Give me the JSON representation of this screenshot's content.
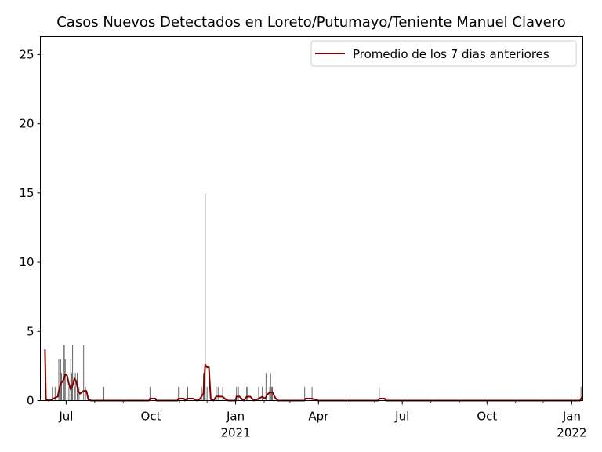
{
  "chart_data": {
    "type": "bar",
    "title": "Casos Nuevos Detectados en Loreto/Putumayo/Teniente Manuel Clavero",
    "xlabel": "",
    "ylabel": "",
    "xlim": [
      "2020-06-03",
      "2022-01-13"
    ],
    "ylim": [
      0,
      26.3
    ],
    "yticks": [
      0,
      5,
      10,
      15,
      20,
      25
    ],
    "xticks": [
      {
        "date": "2020-07-01",
        "label": "Jul",
        "sublabel": ""
      },
      {
        "date": "2020-10-01",
        "label": "Oct",
        "sublabel": ""
      },
      {
        "date": "2021-01-01",
        "label": "Jan",
        "sublabel": "2021"
      },
      {
        "date": "2021-04-01",
        "label": "Apr",
        "sublabel": ""
      },
      {
        "date": "2021-07-01",
        "label": "Jul",
        "sublabel": ""
      },
      {
        "date": "2021-10-01",
        "label": "Oct",
        "sublabel": ""
      },
      {
        "date": "2022-01-01",
        "label": "Jan",
        "sublabel": "2022"
      }
    ],
    "legend": {
      "position": "top-right"
    },
    "bar_color": "#555555",
    "line_color": "#800000",
    "series": [
      {
        "kind": "bar",
        "points": [
          [
            "2020-06-03",
            1
          ],
          [
            "2020-06-16",
            1
          ],
          [
            "2020-06-19",
            1
          ],
          [
            "2020-06-23",
            3
          ],
          [
            "2020-06-24",
            1
          ],
          [
            "2020-06-25",
            3
          ],
          [
            "2020-06-26",
            2
          ],
          [
            "2020-06-28",
            4
          ],
          [
            "2020-06-29",
            4
          ],
          [
            "2020-06-30",
            3
          ],
          [
            "2020-07-02",
            2
          ],
          [
            "2020-07-04",
            1
          ],
          [
            "2020-07-06",
            3
          ],
          [
            "2020-07-07",
            2
          ],
          [
            "2020-07-08",
            4
          ],
          [
            "2020-07-10",
            1
          ],
          [
            "2020-07-11",
            2
          ],
          [
            "2020-07-13",
            2
          ],
          [
            "2020-07-15",
            1
          ],
          [
            "2020-07-20",
            4
          ],
          [
            "2020-07-22",
            1
          ],
          [
            "2020-08-10",
            1
          ],
          [
            "2020-08-11",
            1
          ],
          [
            "2020-09-30",
            1
          ],
          [
            "2020-10-31",
            1
          ],
          [
            "2020-11-10",
            1
          ],
          [
            "2020-11-25",
            1
          ],
          [
            "2020-11-27",
            2
          ],
          [
            "2020-11-28",
            2
          ],
          [
            "2020-11-29",
            15
          ],
          [
            "2020-12-01",
            1
          ],
          [
            "2020-12-11",
            1
          ],
          [
            "2020-12-13",
            1
          ],
          [
            "2020-12-18",
            1
          ],
          [
            "2021-01-02",
            1
          ],
          [
            "2021-01-04",
            1
          ],
          [
            "2021-01-13",
            1
          ],
          [
            "2021-01-14",
            1
          ],
          [
            "2021-01-26",
            1
          ],
          [
            "2021-01-30",
            1
          ],
          [
            "2021-02-03",
            2
          ],
          [
            "2021-02-07",
            1
          ],
          [
            "2021-02-08",
            2
          ],
          [
            "2021-02-09",
            1
          ],
          [
            "2021-02-10",
            1
          ],
          [
            "2021-03-17",
            1
          ],
          [
            "2021-03-25",
            1
          ],
          [
            "2021-06-06",
            1
          ],
          [
            "2022-01-11",
            1
          ]
        ]
      },
      {
        "kind": "line",
        "name": "Promedio de los 7 dias anteriores",
        "points": [
          [
            "2020-06-08",
            3.7
          ],
          [
            "2020-06-09",
            0.1
          ],
          [
            "2020-06-12",
            0
          ],
          [
            "2020-06-16",
            0.1
          ],
          [
            "2020-06-19",
            0.2
          ],
          [
            "2020-06-22",
            0.3
          ],
          [
            "2020-06-23",
            0.7
          ],
          [
            "2020-06-25",
            1.2
          ],
          [
            "2020-06-27",
            1.4
          ],
          [
            "2020-06-29",
            1.6
          ],
          [
            "2020-06-30",
            1.9
          ],
          [
            "2020-07-02",
            1.8
          ],
          [
            "2020-07-04",
            1.2
          ],
          [
            "2020-07-06",
            0.8
          ],
          [
            "2020-07-08",
            1.1
          ],
          [
            "2020-07-10",
            1.6
          ],
          [
            "2020-07-12",
            1.4
          ],
          [
            "2020-07-14",
            0.7
          ],
          [
            "2020-07-16",
            0.5
          ],
          [
            "2020-07-18",
            0.6
          ],
          [
            "2020-07-20",
            0.7
          ],
          [
            "2020-07-23",
            0.7
          ],
          [
            "2020-07-25",
            0.1
          ],
          [
            "2020-07-28",
            0
          ],
          [
            "2020-09-29",
            0
          ],
          [
            "2020-09-30",
            0.14
          ],
          [
            "2020-10-06",
            0.14
          ],
          [
            "2020-10-07",
            0
          ],
          [
            "2020-10-30",
            0
          ],
          [
            "2020-10-31",
            0.14
          ],
          [
            "2020-11-06",
            0.14
          ],
          [
            "2020-11-07",
            0
          ],
          [
            "2020-11-09",
            0.14
          ],
          [
            "2020-11-16",
            0.14
          ],
          [
            "2020-11-20",
            0
          ],
          [
            "2020-11-23",
            0.1
          ],
          [
            "2020-11-25",
            0.3
          ],
          [
            "2020-11-27",
            0.5
          ],
          [
            "2020-11-29",
            2.6
          ],
          [
            "2020-12-01",
            2.4
          ],
          [
            "2020-12-03",
            2.4
          ],
          [
            "2020-12-05",
            0.1
          ],
          [
            "2020-12-08",
            0
          ],
          [
            "2020-12-11",
            0.3
          ],
          [
            "2020-12-14",
            0.3
          ],
          [
            "2020-12-18",
            0.28
          ],
          [
            "2020-12-21",
            0.1
          ],
          [
            "2020-12-24",
            0
          ],
          [
            "2021-01-01",
            0
          ],
          [
            "2021-01-02",
            0.3
          ],
          [
            "2021-01-05",
            0.3
          ],
          [
            "2021-01-08",
            0.1
          ],
          [
            "2021-01-10",
            0
          ],
          [
            "2021-01-13",
            0.28
          ],
          [
            "2021-01-17",
            0.28
          ],
          [
            "2021-01-21",
            0
          ],
          [
            "2021-01-26",
            0.14
          ],
          [
            "2021-01-30",
            0.28
          ],
          [
            "2021-02-02",
            0.14
          ],
          [
            "2021-02-04",
            0.4
          ],
          [
            "2021-02-07",
            0.6
          ],
          [
            "2021-02-10",
            0.6
          ],
          [
            "2021-02-13",
            0.2
          ],
          [
            "2021-02-16",
            0
          ],
          [
            "2021-03-17",
            0
          ],
          [
            "2021-03-18",
            0.14
          ],
          [
            "2021-03-22",
            0.14
          ],
          [
            "2021-03-25",
            0.14
          ],
          [
            "2021-04-01",
            0
          ],
          [
            "2021-06-05",
            0
          ],
          [
            "2021-06-06",
            0.14
          ],
          [
            "2021-06-12",
            0.14
          ],
          [
            "2021-06-13",
            0
          ],
          [
            "2022-01-10",
            0
          ],
          [
            "2022-01-11",
            0.14
          ],
          [
            "2022-01-13",
            0.3
          ]
        ]
      }
    ]
  }
}
